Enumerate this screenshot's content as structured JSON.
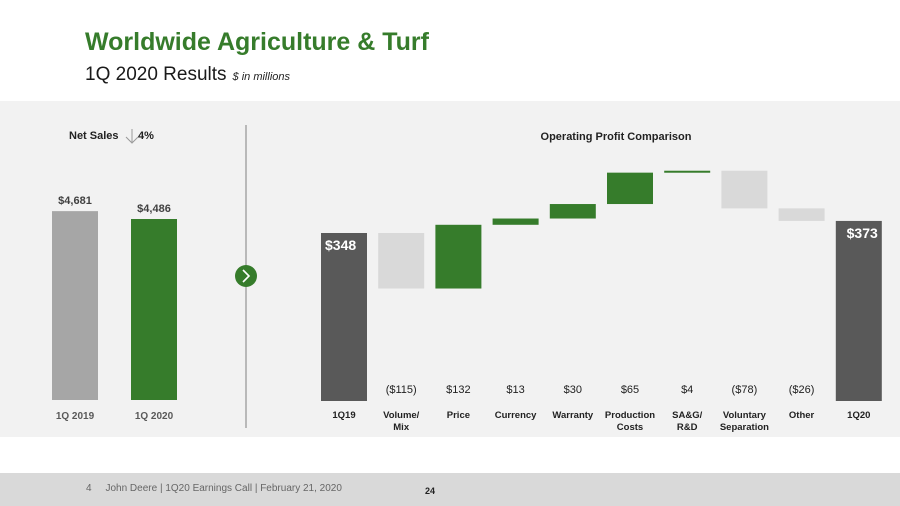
{
  "header": {
    "title": "Worldwide Agriculture & Turf",
    "subtitle": "1Q 2020 Results",
    "unit_note": "$ in millions"
  },
  "footer": {
    "slide_number": "4",
    "text": "John Deere | 1Q20 Earnings Call | February 21, 2020",
    "page_number": "24"
  },
  "colors": {
    "green": "#367C2B",
    "dark_gray": "#595959",
    "light_gray": "#A6A6A6",
    "pale_gray": "#D9D9D9",
    "panel": "#F2F2F2"
  },
  "chart_data": [
    {
      "type": "bar",
      "title": "Net Sales",
      "change_text": "4%",
      "change_direction": "down",
      "categories": [
        "1Q 2019",
        "1Q 2020"
      ],
      "values": [
        4681,
        4486
      ],
      "labels": [
        "$4,681",
        "$4,486"
      ],
      "colors": [
        "#A6A6A6",
        "#367C2B"
      ]
    },
    {
      "type": "bar",
      "subtype": "waterfall",
      "title": "Operating Profit Comparison",
      "categories": [
        "1Q19",
        "Volume/\nMix",
        "Price",
        "Currency",
        "Warranty",
        "Production\nCosts",
        "SA&G/\nR&D",
        "Voluntary\nSeparation",
        "Other",
        "1Q20"
      ],
      "values": [
        348,
        -115,
        132,
        13,
        30,
        65,
        4,
        -78,
        -26,
        373
      ],
      "labels": [
        "$348",
        "($115)",
        "$132",
        "$13",
        "$30",
        "$65",
        "$4",
        "($78)",
        "($26)",
        "$373"
      ],
      "kinds": [
        "total",
        "delta",
        "delta",
        "delta",
        "delta",
        "delta",
        "delta",
        "delta",
        "delta",
        "total"
      ]
    }
  ]
}
